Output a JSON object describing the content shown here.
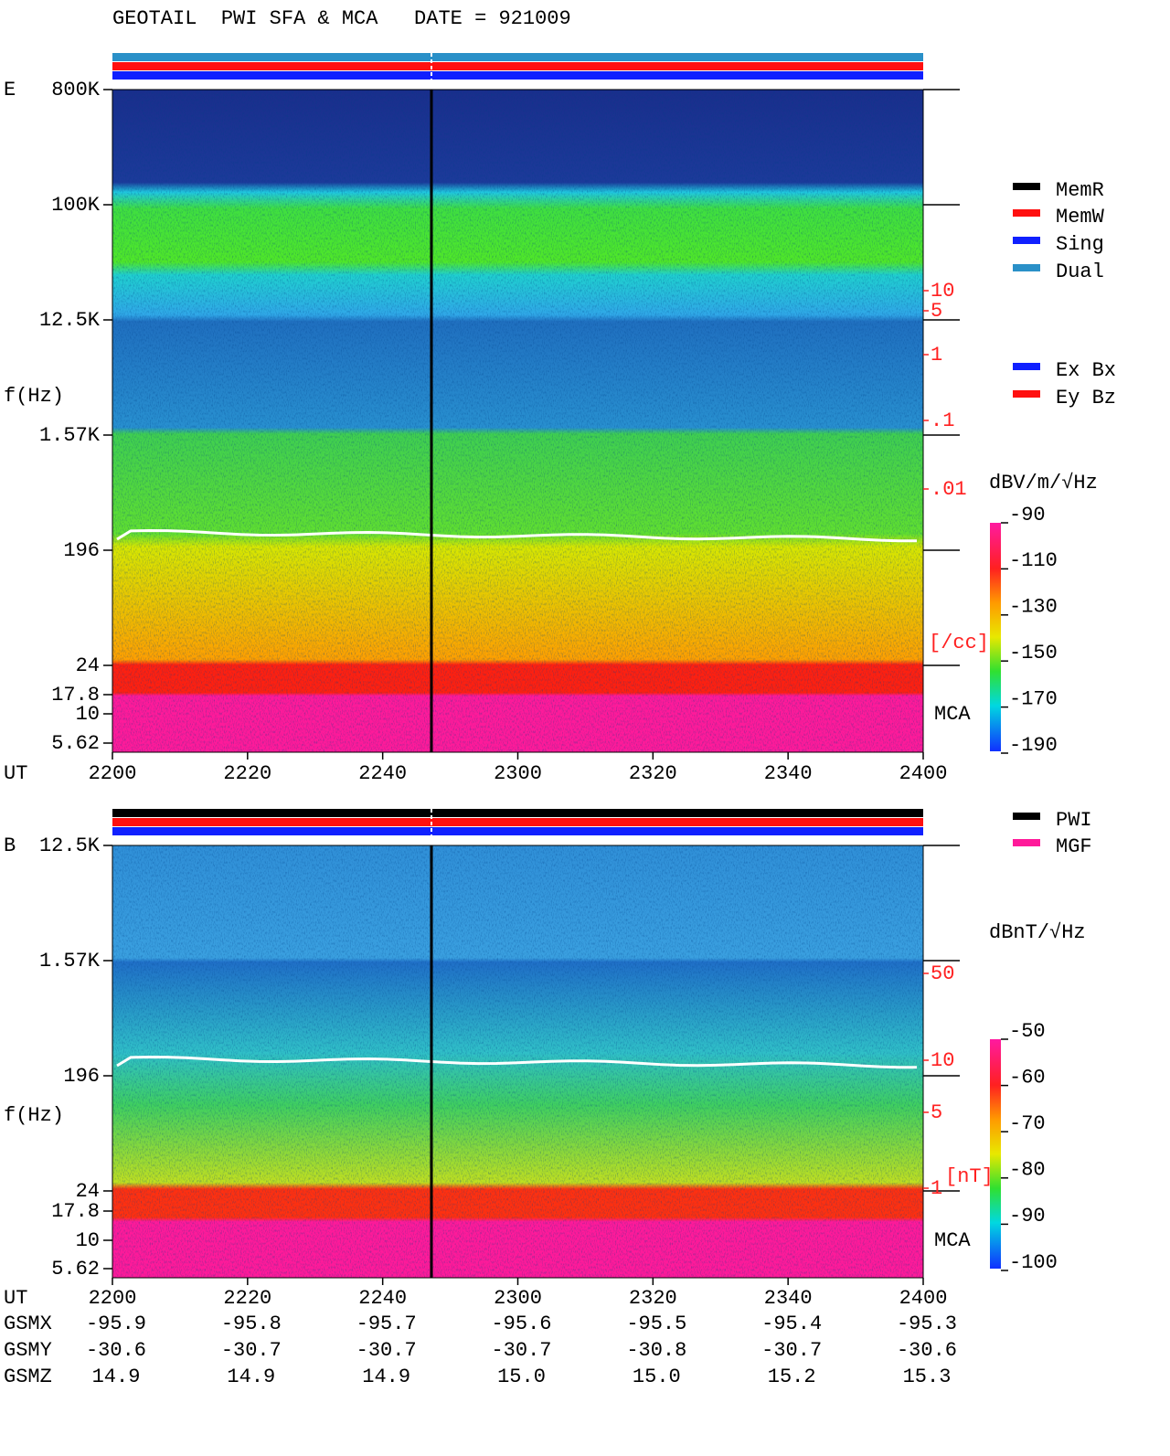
{
  "header": {
    "title": "GEOTAIL  PWI SFA & MCA   DATE = 921009"
  },
  "panels": [
    {
      "label": "E",
      "y_axis_label": "f(Hz)",
      "freq_ticks": [
        "800K",
        "100K",
        "12.5K",
        "1.57K",
        "196",
        "24",
        "17.8",
        "10",
        "5.62"
      ],
      "time_axis_label": "UT",
      "time_ticks": [
        "2200",
        "2220",
        "2240",
        "2300",
        "2320",
        "2340",
        "2400"
      ],
      "right_ticks": [
        "10",
        "5",
        "1",
        ".1",
        ".01"
      ],
      "right_unit": "[/cc]",
      "mca_label": "MCA",
      "colorbar_unit": "dBV/m/√Hz",
      "colorbar_ticks": [
        "-90",
        "-110",
        "-130",
        "-150",
        "-170",
        "-190"
      ]
    },
    {
      "label": "B",
      "y_axis_label": "f(Hz)",
      "freq_ticks": [
        "12.5K",
        "1.57K",
        "196",
        "24",
        "17.8",
        "10",
        "5.62"
      ],
      "time_axis_label": "UT",
      "time_ticks": [
        "2200",
        "2220",
        "2240",
        "2300",
        "2320",
        "2340",
        "2400"
      ],
      "right_ticks": [
        "50",
        "10",
        "5",
        "1"
      ],
      "right_unit": "[nT]",
      "mca_label": "MCA",
      "colorbar_unit": "dBnT/√Hz",
      "colorbar_ticks": [
        "-50",
        "-60",
        "-70",
        "-80",
        "-90",
        "-100"
      ]
    }
  ],
  "legends": {
    "modes": [
      "MemR",
      "MemW",
      "Sing",
      "Dual"
    ],
    "components": [
      "Ex Bx",
      "Ey Bz"
    ],
    "instruments": [
      "PWI",
      "MGF"
    ]
  },
  "orbit": {
    "rows": [
      {
        "name": "GSMX",
        "values": [
          "-95.9",
          "-95.8",
          "-95.7",
          "-95.6",
          "-95.5",
          "-95.4",
          "-95.3"
        ]
      },
      {
        "name": "GSMY",
        "values": [
          "-30.6",
          "-30.7",
          "-30.7",
          "-30.7",
          "-30.8",
          "-30.7",
          "-30.6"
        ]
      },
      {
        "name": "GSMZ",
        "values": [
          "14.9",
          "14.9",
          "14.9",
          "15.0",
          "15.0",
          "15.2",
          "15.3"
        ]
      }
    ]
  }
}
